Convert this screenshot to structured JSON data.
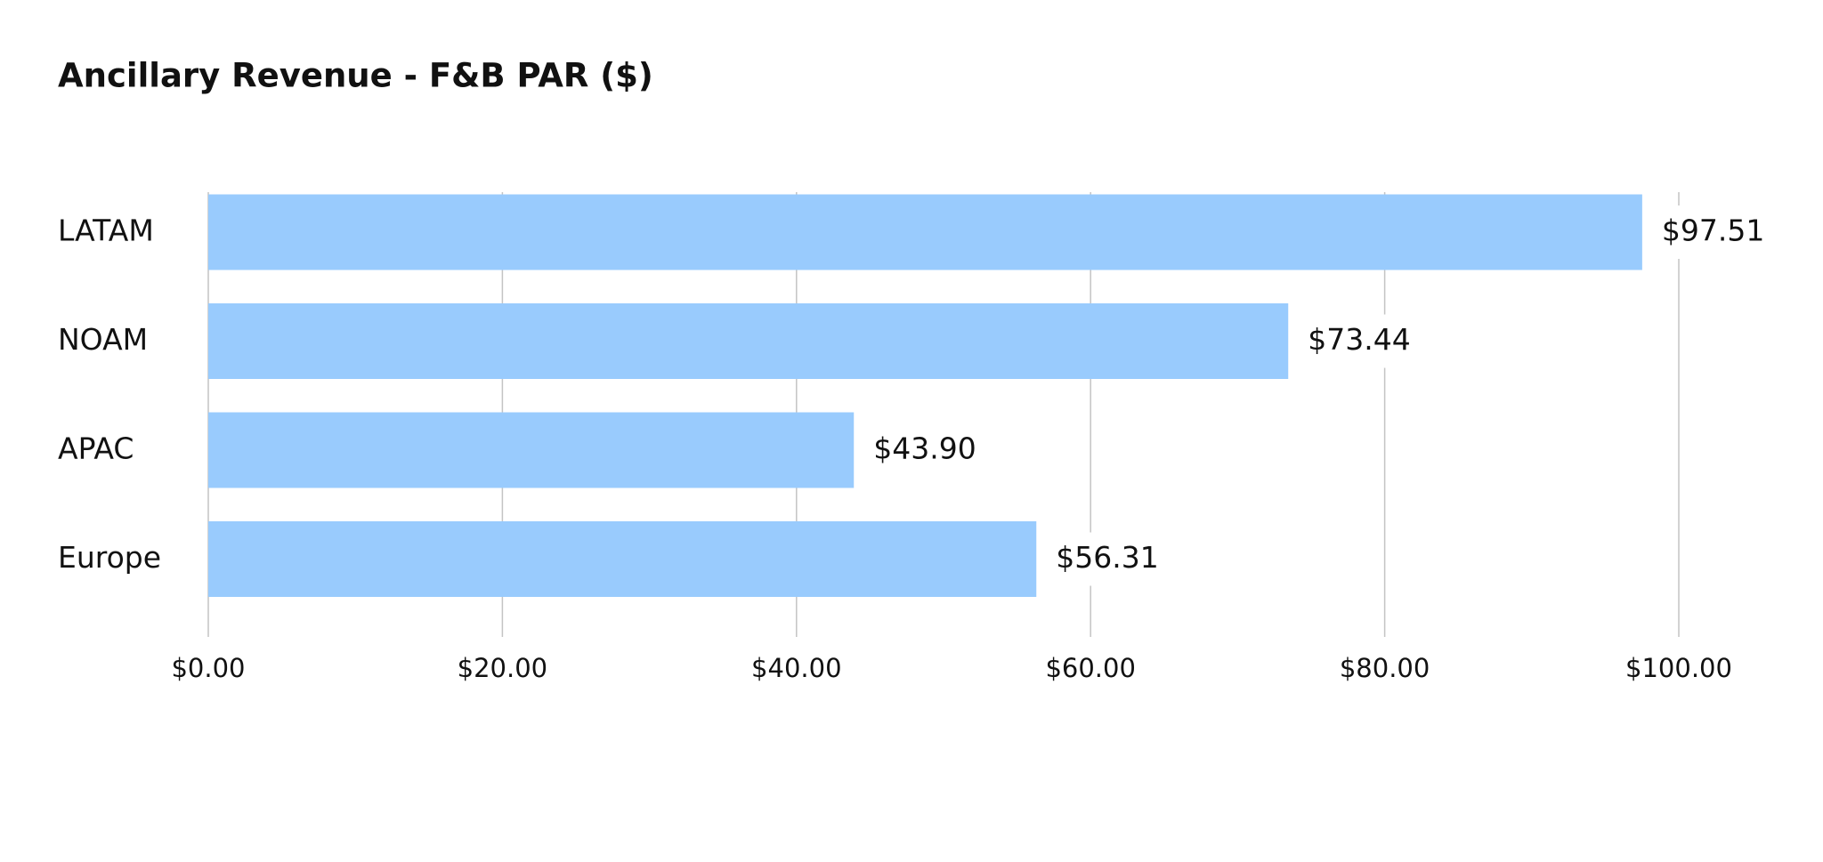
{
  "chart_data": {
    "type": "hbar",
    "title": "Ancillary Revenue - F&B PAR ($)",
    "categories": [
      "LATAM",
      "NOAM",
      "APAC",
      "Europe"
    ],
    "values": [
      97.51,
      73.44,
      43.9,
      56.31
    ],
    "value_labels": [
      "$97.51",
      "$73.44",
      "$43.90",
      "$56.31"
    ],
    "color": "#99cbfd",
    "xlim": [
      0,
      100
    ],
    "xticks": [
      {
        "value": 0,
        "label": "$0.00"
      },
      {
        "value": 20,
        "label": "$20.00"
      },
      {
        "value": 40,
        "label": "$40.00"
      },
      {
        "value": 60,
        "label": "$60.00"
      },
      {
        "value": 80,
        "label": "$80.00"
      },
      {
        "value": 100,
        "label": "$100.00"
      }
    ],
    "grid": true
  }
}
